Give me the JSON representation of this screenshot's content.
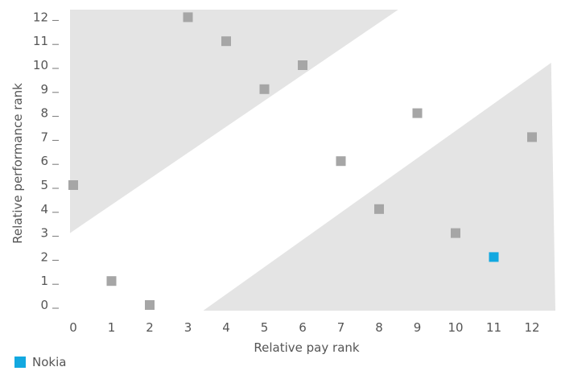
{
  "chart_data": {
    "type": "scatter",
    "title": "",
    "xlabel": "Relative pay rank",
    "ylabel": "Relative performance rank",
    "xlim": [
      0,
      12
    ],
    "ylim": [
      0,
      12
    ],
    "x_ticks": [
      "0",
      "1",
      "2",
      "3",
      "4",
      "5",
      "6",
      "7",
      "8",
      "9",
      "10",
      "11",
      "12"
    ],
    "y_ticks": [
      "0",
      "1",
      "2",
      "3",
      "4",
      "5",
      "6",
      "7",
      "8",
      "9",
      "10",
      "11",
      "12"
    ],
    "grid": false,
    "shaded_regions": [
      {
        "polygon": [
          [
            0,
            3
          ],
          [
            0,
            12.3
          ],
          [
            8.5,
            12.3
          ]
        ]
      },
      {
        "polygon": [
          [
            3.4,
            0
          ],
          [
            12.5,
            0
          ],
          [
            12.5,
            10.1
          ]
        ]
      }
    ],
    "series": [
      {
        "color": "#a6a6a6",
        "points": [
          {
            "x": 0,
            "y": 5
          },
          {
            "x": 1,
            "y": 1
          },
          {
            "x": 2,
            "y": 0
          },
          {
            "x": 3,
            "y": 12
          },
          {
            "x": 4,
            "y": 11
          },
          {
            "x": 5,
            "y": 9
          },
          {
            "x": 6,
            "y": 10
          },
          {
            "x": 7,
            "y": 6
          },
          {
            "x": 8,
            "y": 4
          },
          {
            "x": 9,
            "y": 8
          },
          {
            "x": 10,
            "y": 3
          },
          {
            "x": 12,
            "y": 7
          }
        ]
      },
      {
        "name": "Nokia",
        "color": "#12a8e0",
        "points": [
          {
            "x": 11,
            "y": 2
          }
        ]
      }
    ],
    "legend": {
      "placement": "bottom-left",
      "label": "Nokia",
      "color": "#12a8e0"
    },
    "shade_color": "#e4e4e4"
  }
}
